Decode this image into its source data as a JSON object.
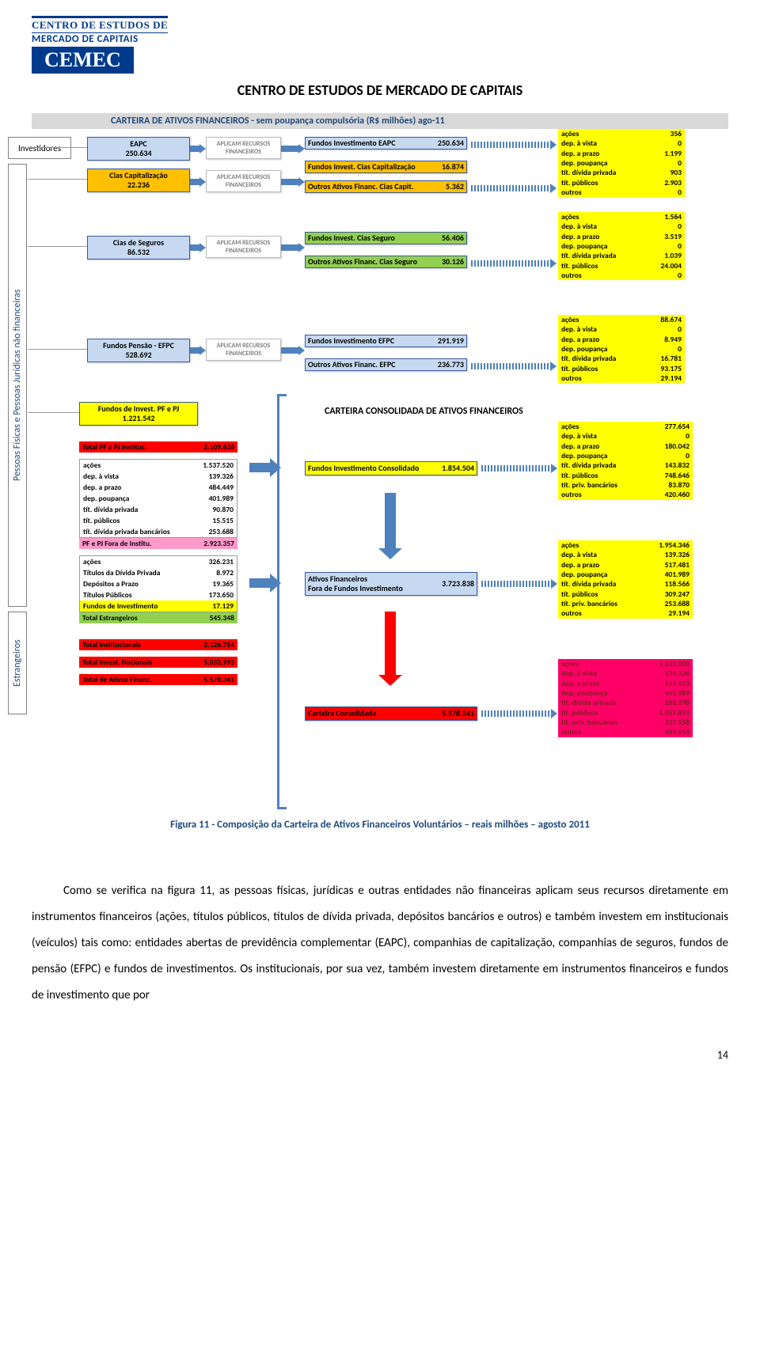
{
  "colors": {
    "blue": "#4f81bd",
    "lightblue": "#c6d9f1",
    "orange": "#ffc000",
    "green_box": "#92d050",
    "yellow": "#ffff00",
    "red": "#ff0000",
    "pink": "#ff99cc",
    "navy": "#1f497d",
    "arrow_blue": "#4f81bd",
    "grey_text": "#808080"
  },
  "logo": {
    "line1": "CENTRO DE ESTUDOS DE",
    "line2": "MERCADO DE CAPITAIS",
    "brand": "CEMEC"
  },
  "header_title": "CENTRO DE ESTUDOS DE MERCADO DE CAPITAIS",
  "banner": "CARTEIRA DE ATIVOS FINANCEIROS - sem poupança compulsória (R$ milhões)  ago-11",
  "cat": {
    "investidores": "Investidores",
    "pessoas": "Pessoas Físicas e Pessoas Jurídicas não financeiras",
    "estrangeiros": "Estrangeiros"
  },
  "src": {
    "eapc": {
      "label": "EAPC",
      "value": "250.634"
    },
    "cias_cap": {
      "label": "Cias Capitalização",
      "value": "22.236"
    },
    "cias_seg": {
      "label": "Cias de Seguros",
      "value": "86.532"
    },
    "efpc": {
      "label": "Fundos Pensão - EFPC",
      "value": "528.692"
    },
    "pfpj": {
      "label": "Fundos de Invest. PF e PJ",
      "value": "1.221.542"
    }
  },
  "aplicam": "APLICAM RECURSOS FINANCEIROS",
  "mid": {
    "fi_eapc": {
      "label": "Fundos Investimento EAPC",
      "value": "250.634"
    },
    "fi_cap": {
      "label": "Fundos Invest. Cias Capitalização",
      "value": "16.874"
    },
    "oaf_cap": {
      "label": "Outros Ativos Financ. Cias Capit.",
      "value": "5.362"
    },
    "fi_seg": {
      "label": "Fundos Invest. Cias Seguro",
      "value": "56.406"
    },
    "oaf_seg": {
      "label": "Outros Ativos Financ. Cias Seguro",
      "value": "30.126"
    },
    "fi_efpc": {
      "label": "Fundos Investimento EFPC",
      "value": "291.919"
    },
    "oaf_efpc": {
      "label": "Outros Ativos Financ. EFPC",
      "value": "236.773"
    },
    "fi_cons": {
      "label": "Fundos Investimento Consolidado",
      "value": "1.854.504"
    },
    "af_fora": {
      "label1": "Ativos Financeiros",
      "label2": "Fora de Fundos Investimento",
      "value": "3.723.838"
    },
    "carteira": {
      "label": "Carteira Consolidada",
      "value": "5.578.341"
    }
  },
  "cons_title": "CARTEIRA CONSOLIDADA DE ATIVOS FINANCEIROS",
  "bd_eapc": {
    "bg": "#ffff00",
    "rows": [
      {
        "l": "ações",
        "v": "356"
      },
      {
        "l": "dep. à vista",
        "v": "0"
      },
      {
        "l": "dep. a prazo",
        "v": "1.199"
      },
      {
        "l": "dep. poupança",
        "v": "0"
      },
      {
        "l": "tít. dívida privada",
        "v": "903"
      },
      {
        "l": "tít. públicos",
        "v": "2.903"
      },
      {
        "l": "outros",
        "v": "0"
      }
    ]
  },
  "bd_seg": {
    "bg": "#ffff00",
    "rows": [
      {
        "l": "ações",
        "v": "1.564"
      },
      {
        "l": "dep. à vista",
        "v": "0"
      },
      {
        "l": "dep. a prazo",
        "v": "3.519"
      },
      {
        "l": "dep. poupança",
        "v": "0"
      },
      {
        "l": "tít. dívida privada",
        "v": "1.039"
      },
      {
        "l": "tít. públicos",
        "v": "24.004"
      },
      {
        "l": "outros",
        "v": "0"
      }
    ]
  },
  "bd_efpc": {
    "bg": "#ffff00",
    "rows": [
      {
        "l": "ações",
        "v": "88.674"
      },
      {
        "l": "dep. à vista",
        "v": "0"
      },
      {
        "l": "dep. a prazo",
        "v": "8.949"
      },
      {
        "l": "dep. poupança",
        "v": "0"
      },
      {
        "l": "tít. dívida privada",
        "v": "16.781"
      },
      {
        "l": "tít. públicos",
        "v": "93.175"
      },
      {
        "l": "outros",
        "v": "29.194"
      }
    ]
  },
  "bd_cons_fi": {
    "bg": "#ffff00",
    "rows": [
      {
        "l": "ações",
        "v": "277.654"
      },
      {
        "l": "dep. à vista",
        "v": "0"
      },
      {
        "l": "dep. a prazo",
        "v": "180.042"
      },
      {
        "l": "dep. poupança",
        "v": "0"
      },
      {
        "l": "tít. dívida privada",
        "v": "143.832"
      },
      {
        "l": "tít. públicos",
        "v": "748.646"
      },
      {
        "l": "tít. priv. bancários",
        "v": "83.870"
      },
      {
        "l": "outros",
        "v": "420.460"
      }
    ]
  },
  "bd_fora": {
    "bg": "#ffff00",
    "rows": [
      {
        "l": "ações",
        "v": "1.954.346"
      },
      {
        "l": "dep. à vista",
        "v": "139.326"
      },
      {
        "l": "dep. a prazo",
        "v": "517.481"
      },
      {
        "l": "dep. poupança",
        "v": "401.989"
      },
      {
        "l": "tít. dívida privada",
        "v": "118.566"
      },
      {
        "l": "tít. públicos",
        "v": "309.247"
      },
      {
        "l": "tít. priv. bancários",
        "v": "253.688"
      },
      {
        "l": "outros",
        "v": "29.194"
      }
    ]
  },
  "bd_carteira": {
    "bg": "#ff0066",
    "rows": [
      {
        "l": "ações",
        "v": "2.232.000"
      },
      {
        "l": "dep. à vista",
        "v": "139.326"
      },
      {
        "l": "dep. a prazo",
        "v": "697.523"
      },
      {
        "l": "dep. poupança",
        "v": "401.989"
      },
      {
        "l": "tít. dívida privada",
        "v": "262.398"
      },
      {
        "l": "tít. públicos",
        "v": "1.057.893"
      },
      {
        "l": "tít. priv. bancários",
        "v": "337.558"
      },
      {
        "l": "outros",
        "v": "449.654"
      }
    ]
  },
  "inst_total": {
    "label": "Total PF e PJ Instituc.",
    "value": "2.109.636"
  },
  "inst_breakdown": [
    {
      "l": "ações",
      "v": "1.537.520"
    },
    {
      "l": "dep. à vista",
      "v": "139.326"
    },
    {
      "l": "dep. a prazo",
      "v": "484.449"
    },
    {
      "l": "dep. poupança",
      "v": "401.989"
    },
    {
      "l": "tít. dívida privada",
      "v": "90.870"
    },
    {
      "l": "tít. públicos",
      "v": "15.515"
    },
    {
      "l": "tít. dívida privada bancários",
      "v": "253.688"
    }
  ],
  "fora_header": {
    "label": "PF e PJ Fora de Institu.",
    "value": "2.923.357"
  },
  "estrang": [
    {
      "l": "ações",
      "v": "326.231"
    },
    {
      "l": "Títulos da Dívida Privada",
      "v": "8.972"
    },
    {
      "l": "Depósitos a Prazo",
      "v": "19.365"
    },
    {
      "l": "Títulos Públicos",
      "v": "173.650"
    },
    {
      "l": "Fundos de Investimento",
      "v": "17.129",
      "bg": "#ffff00"
    }
  ],
  "tot_estrang": {
    "label": "Total Estrangeiros",
    "value": "545.348"
  },
  "tot1": {
    "label": "Total Institucionais",
    "value": "2.126.764"
  },
  "tot2": {
    "label": "Total Invest. Nacionais",
    "value": "5.032.993"
  },
  "tot3": {
    "label": "Total de Ativos Financ.",
    "value": "5.578.341"
  },
  "caption": "Figura 11 - Composição da Carteira de Ativos Financeiros Voluntários – reais milhões – agosto 2011",
  "body_text": "Como se verifica na figura 11, as pessoas físicas, jurídicas e outras entidades não financeiras aplicam seus recursos diretamente em instrumentos financeiros (ações, títulos públicos, títulos de dívida privada, depósitos bancários e outros) e também investem em institucionais (veículos) tais como: entidades abertas de previdência complementar (EAPC), companhias de capitalização, companhias de seguros, fundos de pensão (EFPC) e fundos de investimentos. Os institucionais, por sua vez, também investem diretamente em instrumentos financeiros e fundos de investimento que por",
  "page_num": "14"
}
